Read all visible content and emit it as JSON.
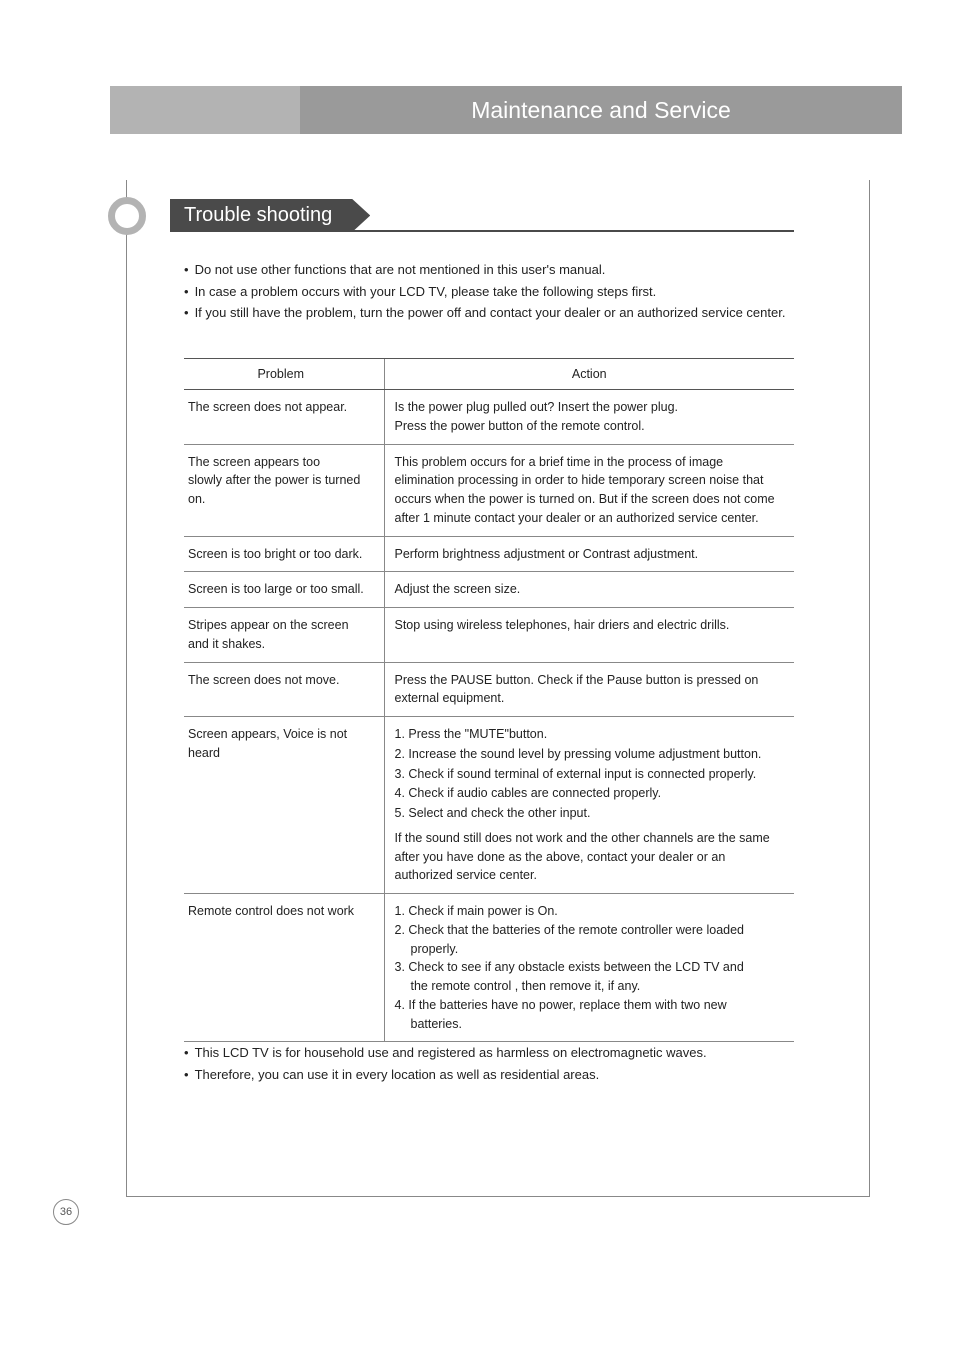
{
  "colors": {
    "header_gray": "#b3b3b3",
    "header_dark_gray": "#9a9a9a",
    "tab_dark": "#4a4a4a",
    "text": "#222222",
    "border": "#888888"
  },
  "header": {
    "title": "Maintenance and Service"
  },
  "section": {
    "title": "Trouble shooting"
  },
  "intro": {
    "bullets": [
      "Do not use other functions that are not mentioned in this user's manual.",
      "In case a problem occurs with your LCD TV, please take the following steps first.",
      "If you still have the problem, turn the power off and contact your dealer or an authorized service center."
    ]
  },
  "table": {
    "headers": {
      "problem": "Problem",
      "action": "Action"
    },
    "rows": [
      {
        "problem": "The screen does not appear.",
        "action": "Is the power plug pulled out? Insert the power plug.\nPress the power button of the remote control."
      },
      {
        "problem": "The screen appears too\nslowly after the power is turned on.",
        "action": "This problem occurs for a brief time in the process of image elimination processing in order to hide temporary screen noise that occurs when the power is turned on. But if the screen does not come after 1 minute contact your dealer or an authorized service center."
      },
      {
        "problem": "Screen is too bright or too dark.",
        "action": "Perform brightness adjustment or Contrast adjustment."
      },
      {
        "problem": "Screen is too large or too small.",
        "action": "Adjust the screen size."
      },
      {
        "problem": "Stripes appear on the screen\nand it shakes.",
        "action": "Stop using wireless telephones, hair driers and  electric drills."
      },
      {
        "problem": "The screen does not move.",
        "action": "Press the PAUSE button.  Check if the Pause button is pressed on external equipment."
      },
      {
        "problem": "Screen appears, Voice is not heard",
        "action_list": [
          "1. Press the \"MUTE\"button.",
          "2. Increase the sound level by pressing volume adjustment button.",
          "3. Check if sound terminal of external input is connected properly.",
          "4. Check if audio cables are connected properly.",
          "5. Select and check the other input."
        ],
        "action_tail": "If the sound still does not work and the other channels are the same after you have done as the above, contact your dealer or an authorized service center."
      },
      {
        "problem": "Remote control does not work",
        "action_lines": [
          "1. Check if main power is On.",
          "2. Check that the batteries of the remote controller were loaded",
          "    properly.",
          "3. Check to see if any obstacle exists between the  LCD TV and",
          "    the remote control , then remove it, if any.",
          "4. If the batteries have no power, replace them with two new",
          "    batteries."
        ]
      }
    ]
  },
  "bottom_notes": {
    "items": [
      "This LCD TV is for household use and registered as harmless on electromagnetic waves.",
      "Therefore, you can use it in every location as well as residential areas."
    ]
  },
  "page_number": "36"
}
